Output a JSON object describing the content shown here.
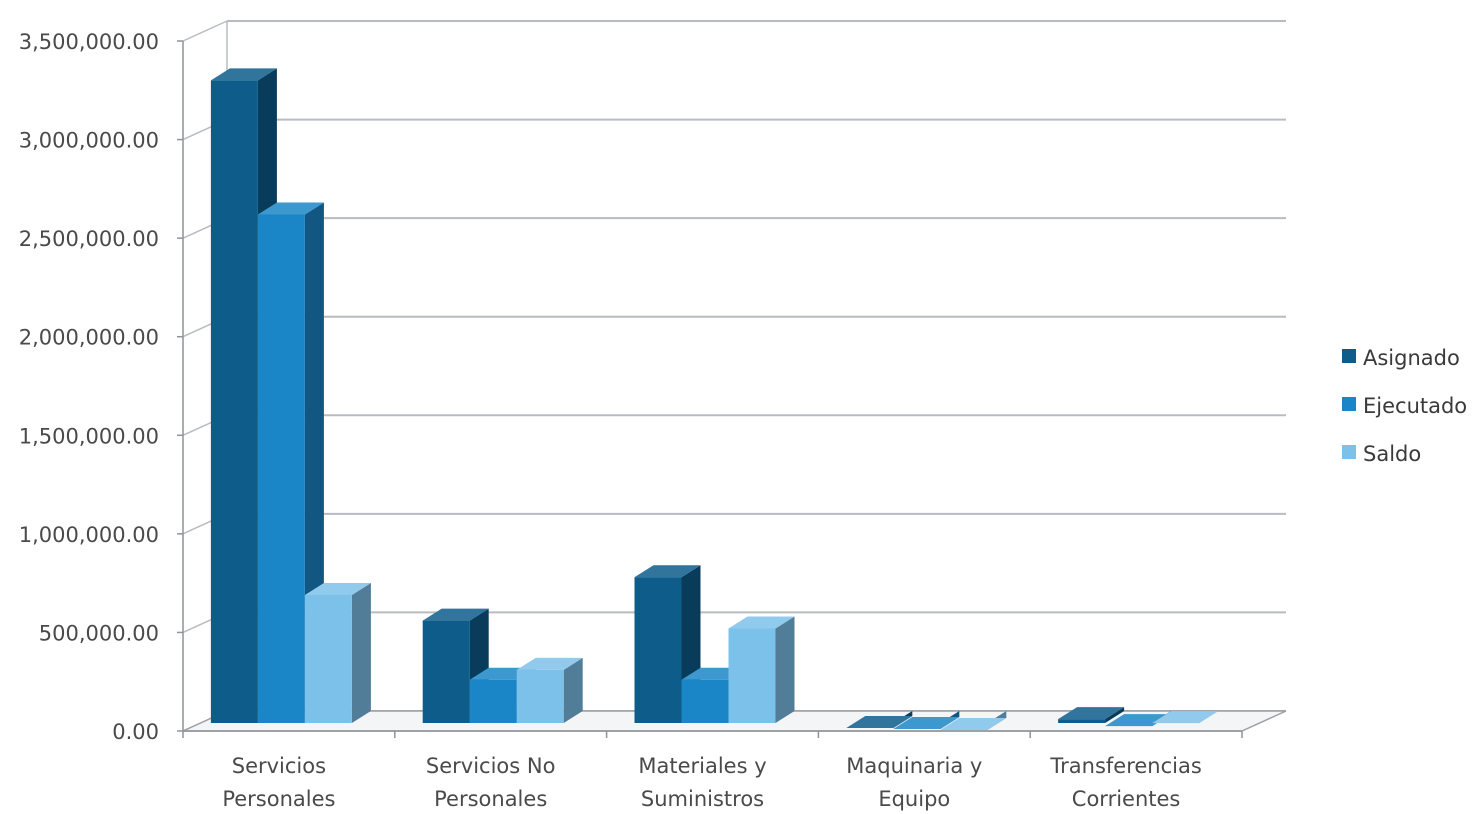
{
  "chart_data": {
    "type": "bar",
    "style": "3d-clustered-column",
    "categories": [
      [
        "Servicios",
        "Personales"
      ],
      [
        "Servicios No",
        "Personales"
      ],
      [
        "Materiales y",
        "Suministros"
      ],
      [
        "Maquinaria y",
        "Equipo"
      ],
      [
        "Transferencias",
        "Corrientes"
      ]
    ],
    "series": [
      {
        "name": "Asignado",
        "color": "#0d5c8a",
        "values": [
          3300000,
          560000,
          780000,
          15000,
          60000
        ]
      },
      {
        "name": "Ejecutado",
        "color": "#1a86c7",
        "values": [
          2620000,
          260000,
          260000,
          10000,
          25000
        ]
      },
      {
        "name": "Saldo",
        "color": "#7cc1ea",
        "values": [
          690000,
          310000,
          520000,
          5000,
          40000
        ]
      }
    ],
    "y_ticks": [
      "0.00",
      "500,000.00",
      "1,000,000.00",
      "1,500,000.00",
      "2,000,000.00",
      "2,500,000.00",
      "3,000,000.00",
      "3,500,000.00"
    ],
    "ylim": [
      0,
      3500000
    ],
    "grid": true,
    "legend_position": "right"
  }
}
